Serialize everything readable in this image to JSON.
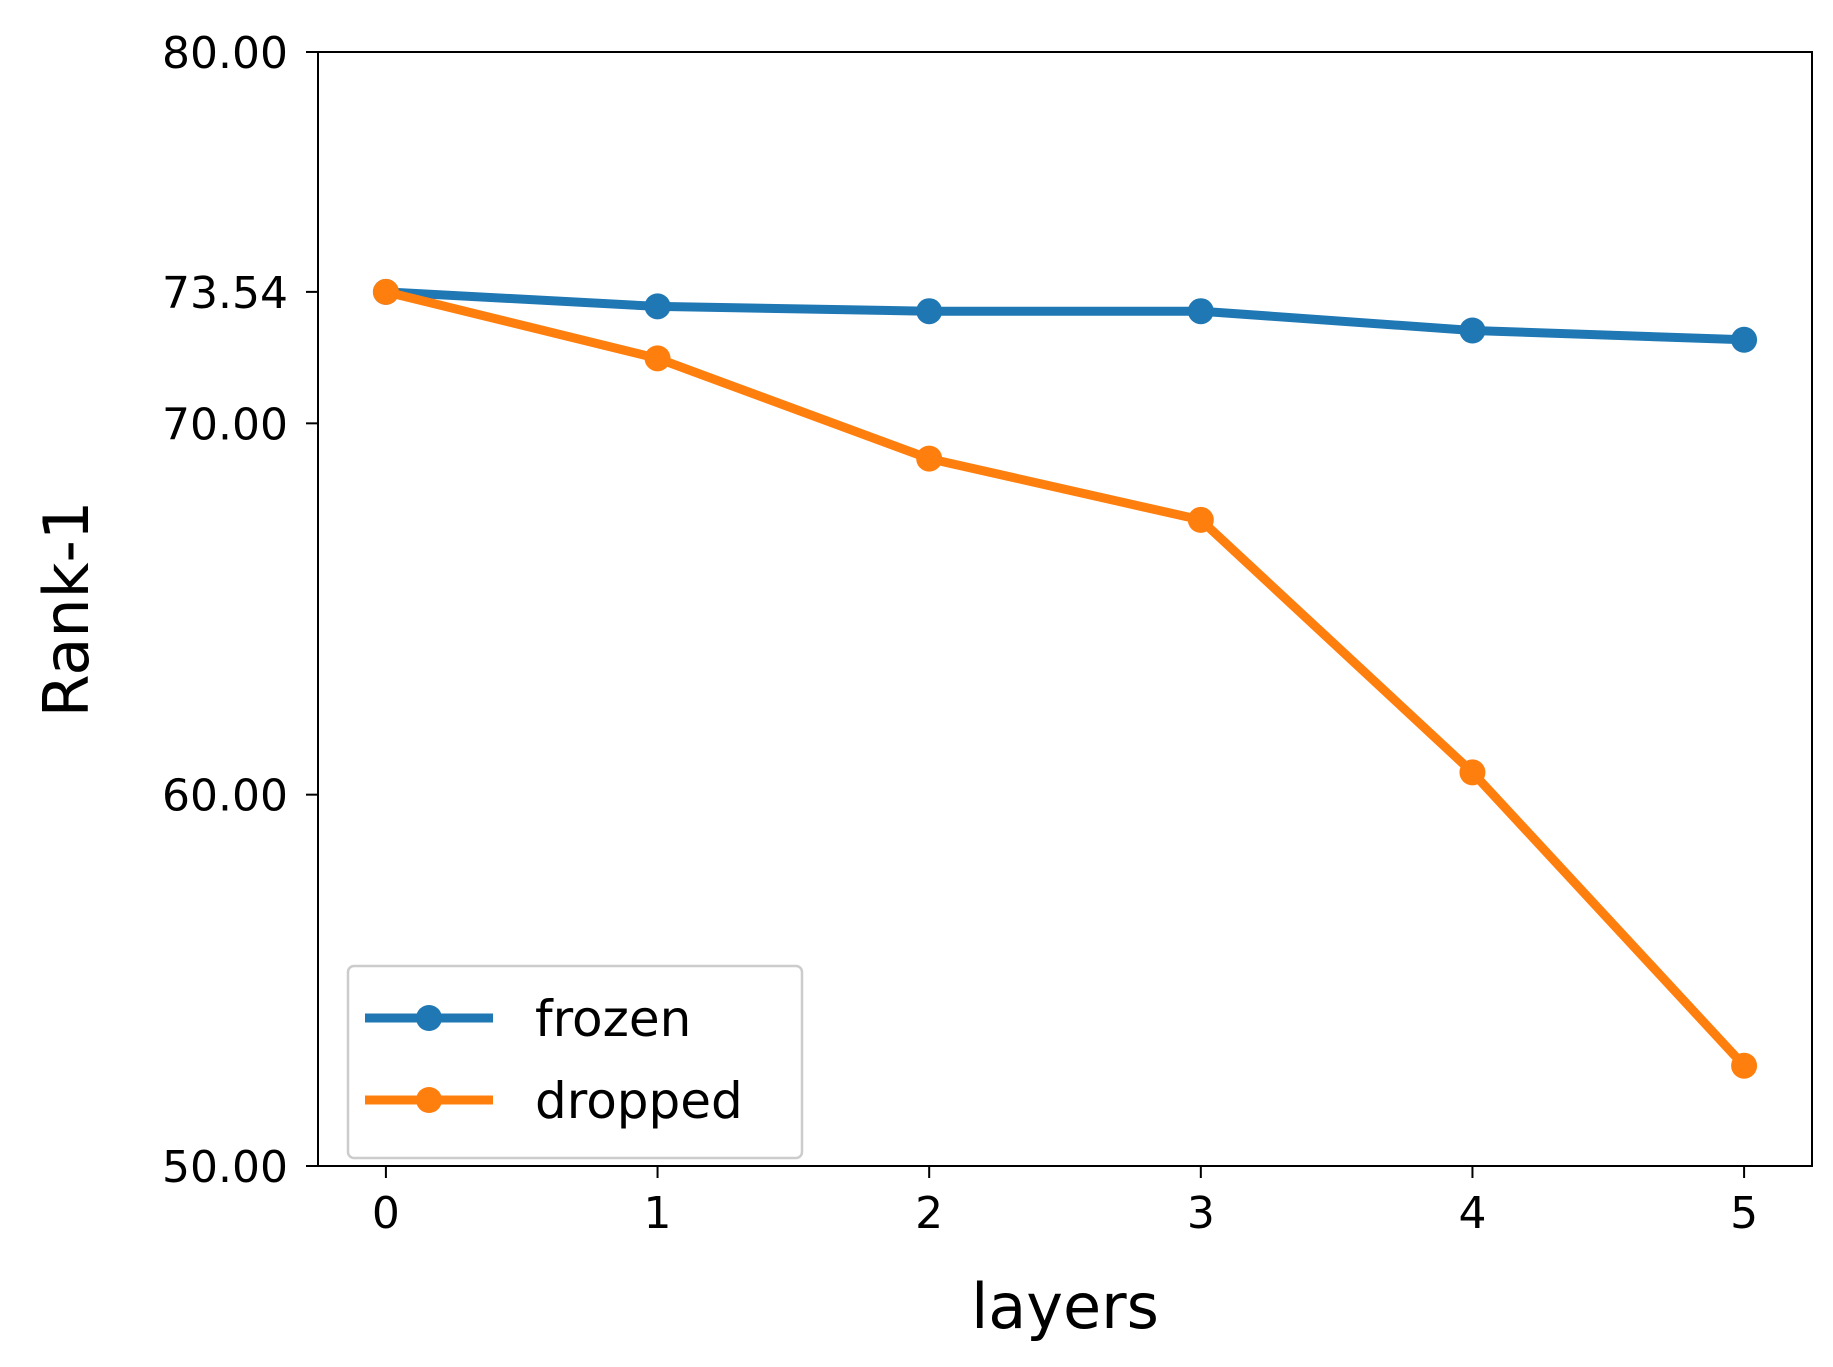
{
  "chart_data": {
    "type": "line",
    "xlabel": "layers",
    "ylabel": "Rank-1",
    "x": [
      0,
      1,
      2,
      3,
      4,
      5
    ],
    "xticks": [
      "0",
      "1",
      "2",
      "3",
      "4",
      "5"
    ],
    "yticks": [
      50.0,
      60.0,
      70.0,
      73.54,
      80.0
    ],
    "ytick_labels": [
      "50.00",
      "60.00",
      "70.00",
      "73.54",
      "80.00"
    ],
    "ylim": [
      50,
      80
    ],
    "xlim": [
      -0.25,
      5.25
    ],
    "grid": false,
    "legend_position": "lower-left",
    "series": [
      {
        "name": "frozen",
        "color": "#1f77b4",
        "marker": "circle",
        "values": [
          73.54,
          73.15,
          73.02,
          73.02,
          72.5,
          72.25
        ]
      },
      {
        "name": "dropped",
        "color": "#ff7f0e",
        "marker": "circle",
        "values": [
          73.54,
          71.75,
          69.05,
          67.4,
          60.6,
          52.7
        ]
      }
    ]
  }
}
